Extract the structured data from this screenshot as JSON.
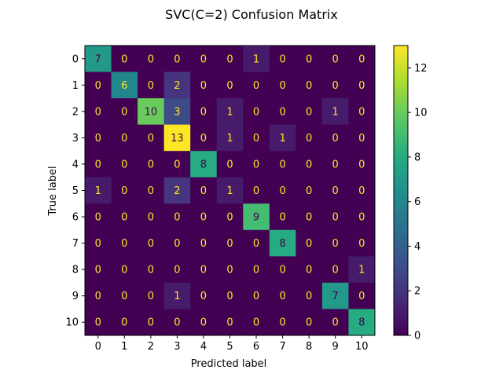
{
  "chart_data": {
    "type": "heatmap",
    "title": "SVC(C=2) Confusion Matrix",
    "xlabel": "Predicted label",
    "ylabel": "True label",
    "x_categories": [
      "0",
      "1",
      "2",
      "3",
      "4",
      "5",
      "6",
      "7",
      "8",
      "9",
      "10"
    ],
    "y_categories": [
      "0",
      "1",
      "2",
      "3",
      "4",
      "5",
      "6",
      "7",
      "8",
      "9",
      "10"
    ],
    "matrix": [
      [
        7,
        0,
        0,
        0,
        0,
        0,
        1,
        0,
        0,
        0,
        0
      ],
      [
        0,
        6,
        0,
        2,
        0,
        0,
        0,
        0,
        0,
        0,
        0
      ],
      [
        0,
        0,
        10,
        3,
        0,
        1,
        0,
        0,
        0,
        1,
        0
      ],
      [
        0,
        0,
        0,
        13,
        0,
        1,
        0,
        1,
        0,
        0,
        0
      ],
      [
        0,
        0,
        0,
        0,
        8,
        0,
        0,
        0,
        0,
        0,
        0
      ],
      [
        1,
        0,
        0,
        2,
        0,
        1,
        0,
        0,
        0,
        0,
        0
      ],
      [
        0,
        0,
        0,
        0,
        0,
        0,
        9,
        0,
        0,
        0,
        0
      ],
      [
        0,
        0,
        0,
        0,
        0,
        0,
        0,
        8,
        0,
        0,
        0
      ],
      [
        0,
        0,
        0,
        0,
        0,
        0,
        0,
        0,
        0,
        0,
        1
      ],
      [
        0,
        0,
        0,
        1,
        0,
        0,
        0,
        0,
        0,
        7,
        0
      ],
      [
        0,
        0,
        0,
        0,
        0,
        0,
        0,
        0,
        0,
        0,
        8
      ]
    ],
    "colormap": "viridis",
    "value_range": [
      0,
      13
    ],
    "colorbar_ticks": [
      0,
      2,
      4,
      6,
      8,
      10,
      12
    ],
    "text_color_low": "#fde725",
    "text_color_high": "#440154",
    "grid": false
  }
}
